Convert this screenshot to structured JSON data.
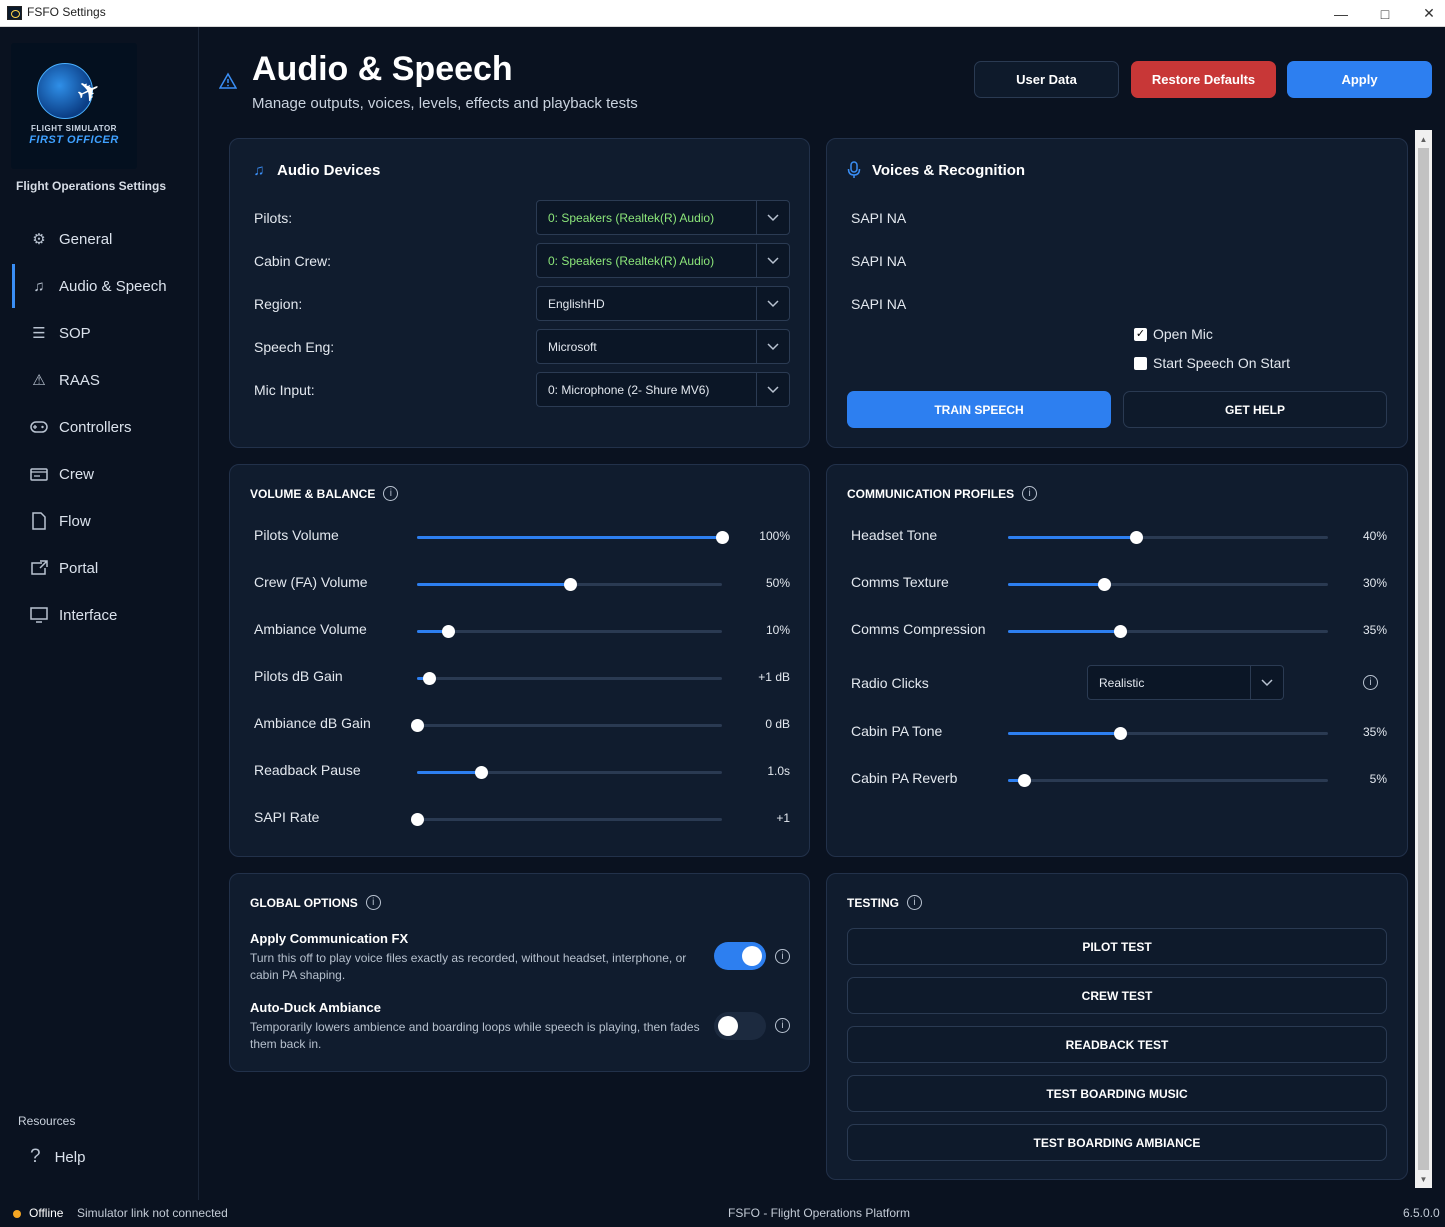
{
  "window": {
    "title": "FSFO Settings"
  },
  "sidebar": {
    "logo_line1": "FLIGHT SIMULATOR",
    "logo_line2": "FIRST OFFICER",
    "caption": "Flight Operations Settings",
    "items": [
      {
        "label": "General",
        "icon": "gear-icon"
      },
      {
        "label": "Audio & Speech",
        "icon": "music-note-icon"
      },
      {
        "label": "SOP",
        "icon": "list-icon"
      },
      {
        "label": "RAAS",
        "icon": "warning-icon"
      },
      {
        "label": "Controllers",
        "icon": "gamepad-icon"
      },
      {
        "label": "Crew",
        "icon": "id-card-icon"
      },
      {
        "label": "Flow",
        "icon": "document-icon"
      },
      {
        "label": "Portal",
        "icon": "external-link-icon"
      },
      {
        "label": "Interface",
        "icon": "monitor-icon"
      }
    ],
    "active": "Audio & Speech",
    "resources_label": "Resources",
    "help_label": "Help"
  },
  "header": {
    "title": "Audio & Speech",
    "subtitle": "Manage outputs, voices, levels, effects and playback tests",
    "user_data_label": "User Data",
    "restore_label": "Restore Defaults",
    "apply_label": "Apply"
  },
  "audio_devices": {
    "title": "Audio Devices",
    "rows": [
      {
        "label": "Pilots:",
        "value": "0: Speakers (Realtek(R) Audio)",
        "highlight": true
      },
      {
        "label": "Cabin Crew:",
        "value": "0: Speakers (Realtek(R) Audio)",
        "highlight": true
      },
      {
        "label": "Region:",
        "value": "EnglishHD",
        "highlight": false
      },
      {
        "label": "Speech Eng:",
        "value": "Microsoft",
        "highlight": false
      },
      {
        "label": "Mic Input:",
        "value": "0: Microphone (2- Shure MV6)",
        "highlight": false
      }
    ]
  },
  "voices": {
    "title": "Voices & Recognition",
    "sapi": [
      "SAPI NA",
      "SAPI NA",
      "SAPI NA"
    ],
    "open_mic_label": "Open Mic",
    "open_mic_checked": true,
    "start_speech_label": "Start Speech On Start",
    "start_speech_checked": false,
    "train_label": "TRAIN SPEECH",
    "help_label": "GET HELP"
  },
  "volume": {
    "title": "VOLUME & BALANCE",
    "rows": [
      {
        "label": "Pilots Volume",
        "value": "100%",
        "fraction": 1.0
      },
      {
        "label": "Crew (FA) Volume",
        "value": "50%",
        "fraction": 0.5
      },
      {
        "label": "Ambiance Volume",
        "value": "10%",
        "fraction": 0.1
      },
      {
        "label": "Pilots dB Gain",
        "value": "+1 dB",
        "fraction": 0.04
      },
      {
        "label": "Ambiance dB Gain",
        "value": "0 dB",
        "fraction": 0.0
      },
      {
        "label": "Readback Pause",
        "value": "1.0s",
        "fraction": 0.21
      },
      {
        "label": "SAPI Rate",
        "value": "+1",
        "fraction": 0.0
      }
    ]
  },
  "comms": {
    "title": "COMMUNICATION PROFILES",
    "rows": [
      {
        "label": "Headset Tone",
        "value": "40%",
        "fraction": 0.4
      },
      {
        "label": "Comms Texture",
        "value": "30%",
        "fraction": 0.3
      },
      {
        "label": "Comms Compression",
        "value": "35%",
        "fraction": 0.35
      }
    ],
    "radio_clicks_label": "Radio Clicks",
    "radio_clicks_value": "Realistic",
    "rows2": [
      {
        "label": "Cabin PA Tone",
        "value": "35%",
        "fraction": 0.35
      },
      {
        "label": "Cabin PA Reverb",
        "value": "5%",
        "fraction": 0.05
      }
    ]
  },
  "global": {
    "title": "GLOBAL OPTIONS",
    "options": [
      {
        "title": "Apply Communication FX",
        "desc": "Turn this off to play voice files exactly as recorded, without headset, interphone, or cabin PA shaping.",
        "on": true
      },
      {
        "title": "Auto-Duck Ambiance",
        "desc": "Temporarily lowers ambience and boarding loops while speech is playing, then fades them back in.",
        "on": false
      }
    ]
  },
  "testing": {
    "title": "TESTING",
    "buttons": [
      "PILOT TEST",
      "CREW TEST",
      "READBACK TEST",
      "TEST BOARDING MUSIC",
      "TEST BOARDING AMBIANCE"
    ]
  },
  "status": {
    "state": "Offline",
    "detail": "Simulator link not connected",
    "center": "FSFO - Flight Operations Platform",
    "version": "6.5.0.0"
  },
  "colors": {
    "accent": "#2d7ff0",
    "danger": "#c83737",
    "status_offline": "#f5a623",
    "device_highlight": "#8ce67a"
  }
}
